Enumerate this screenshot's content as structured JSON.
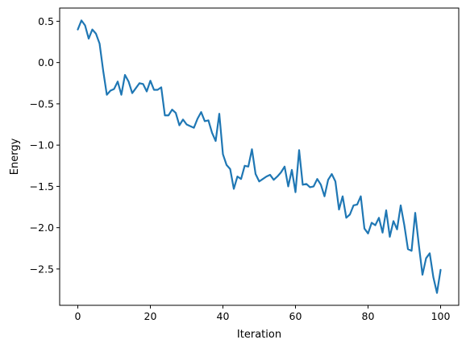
{
  "chart_data": {
    "type": "line",
    "title": "",
    "xlabel": "Iteration",
    "ylabel": "Energy",
    "xlim": [
      -5,
      105
    ],
    "ylim": [
      -2.94,
      0.66
    ],
    "x_ticks": [
      0,
      20,
      40,
      60,
      80,
      100
    ],
    "y_ticks": [
      0.5,
      0.0,
      -0.5,
      -1.0,
      -1.5,
      -2.0,
      -2.5
    ],
    "x_tick_labels": [
      "0",
      "20",
      "40",
      "60",
      "80",
      "100"
    ],
    "y_tick_labels": [
      "0.5",
      "0.0",
      "−0.5",
      "−1.0",
      "−1.5",
      "−2.0",
      "−2.5"
    ],
    "grid": false,
    "colors": {
      "line": "#1f77b4",
      "axes": "#000000",
      "background": "#ffffff"
    },
    "series": [
      {
        "x": [
          0,
          1,
          2,
          3,
          4,
          5,
          6,
          7,
          8,
          9,
          10,
          11,
          12,
          13,
          14,
          15,
          16,
          17,
          18,
          19,
          20,
          21,
          22,
          23,
          24,
          25,
          26,
          27,
          28,
          29,
          30,
          31,
          32,
          33,
          34,
          35,
          36,
          37,
          38,
          39,
          40,
          41,
          42,
          43,
          44,
          45,
          46,
          47,
          48,
          49,
          50,
          51,
          52,
          53,
          54,
          55,
          56,
          57,
          58,
          59,
          60,
          61,
          62,
          63,
          64,
          65,
          66,
          67,
          68,
          69,
          70,
          71,
          72,
          73,
          74,
          75,
          76,
          77,
          78,
          79,
          80,
          81,
          82,
          83,
          84,
          85,
          86,
          87,
          88,
          89,
          90,
          91,
          92,
          93,
          94,
          95,
          96,
          97,
          98,
          99,
          100
        ],
        "values": [
          0.4,
          0.51,
          0.45,
          0.29,
          0.4,
          0.35,
          0.23,
          -0.1,
          -0.39,
          -0.34,
          -0.32,
          -0.23,
          -0.39,
          -0.15,
          -0.23,
          -0.37,
          -0.31,
          -0.25,
          -0.26,
          -0.35,
          -0.22,
          -0.33,
          -0.33,
          -0.3,
          -0.64,
          -0.64,
          -0.57,
          -0.61,
          -0.76,
          -0.69,
          -0.75,
          -0.77,
          -0.79,
          -0.68,
          -0.6,
          -0.71,
          -0.7,
          -0.85,
          -0.95,
          -0.62,
          -1.11,
          -1.24,
          -1.29,
          -1.53,
          -1.38,
          -1.41,
          -1.25,
          -1.26,
          -1.05,
          -1.35,
          -1.44,
          -1.41,
          -1.38,
          -1.36,
          -1.42,
          -1.38,
          -1.33,
          -1.26,
          -1.5,
          -1.3,
          -1.57,
          -1.06,
          -1.48,
          -1.47,
          -1.51,
          -1.5,
          -1.41,
          -1.48,
          -1.62,
          -1.42,
          -1.35,
          -1.44,
          -1.78,
          -1.62,
          -1.88,
          -1.84,
          -1.73,
          -1.72,
          -1.62,
          -2.01,
          -2.07,
          -1.94,
          -1.97,
          -1.88,
          -2.06,
          -1.79,
          -2.11,
          -1.92,
          -2.02,
          -1.73,
          -1.97,
          -2.26,
          -2.28,
          -1.82,
          -2.21,
          -2.57,
          -2.37,
          -2.31,
          -2.6,
          -2.79,
          -2.51
        ]
      }
    ]
  }
}
